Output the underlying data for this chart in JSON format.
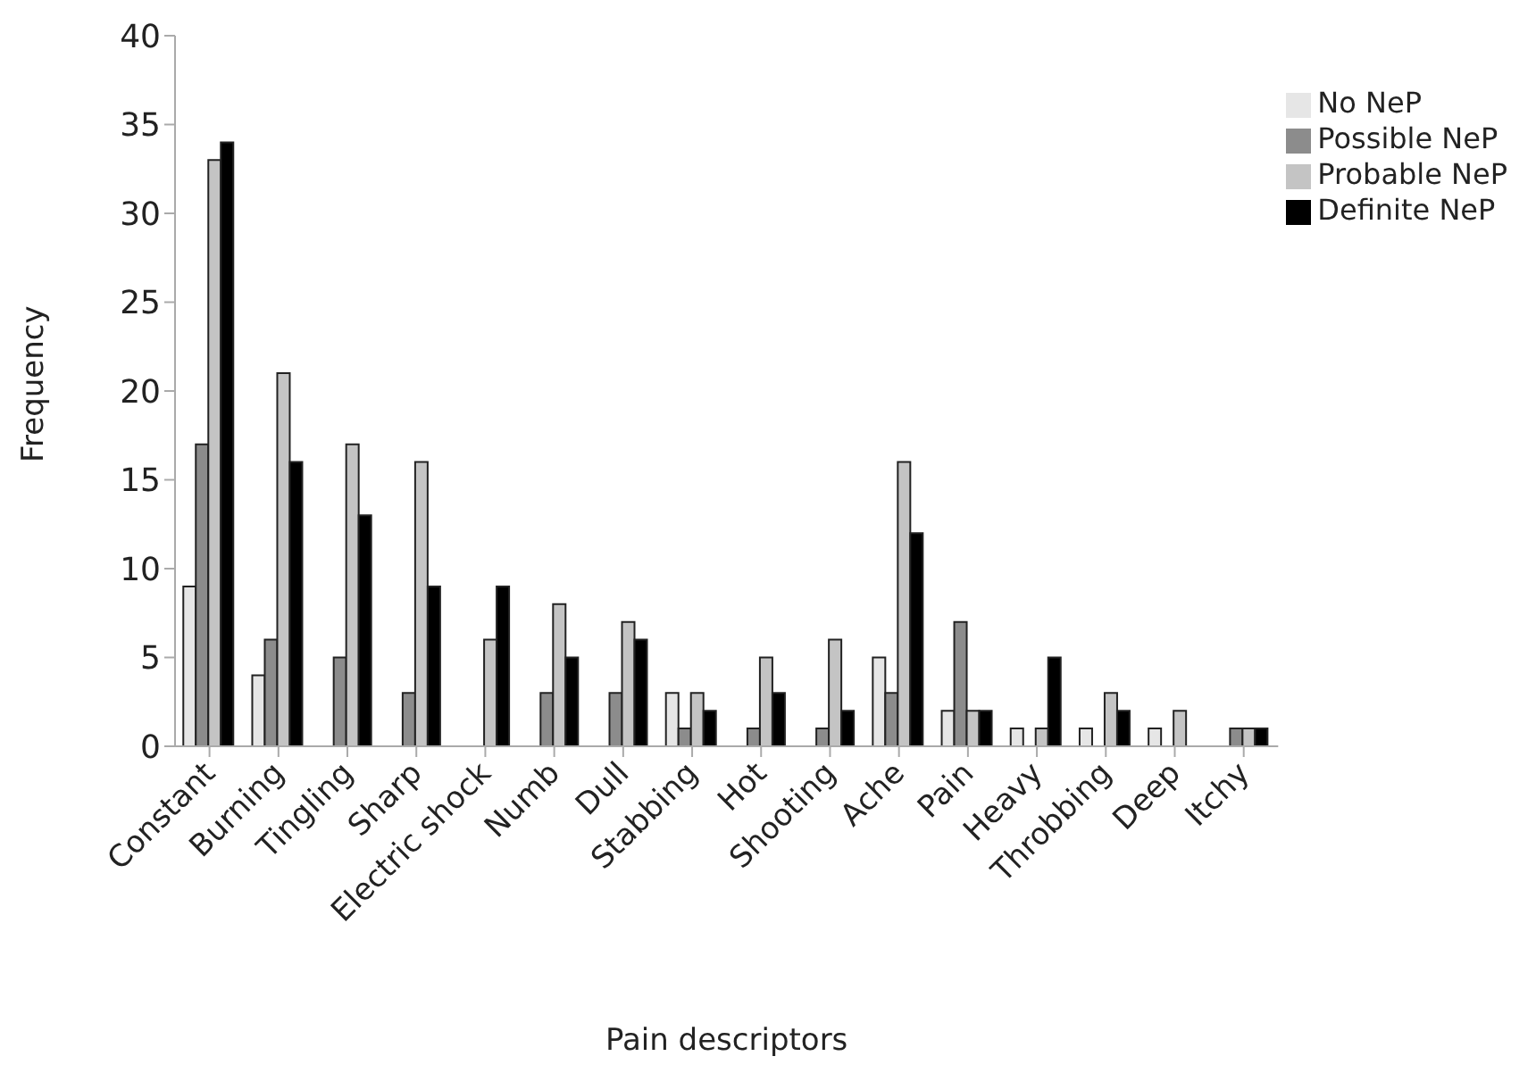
{
  "chart_data": {
    "type": "bar",
    "xlabel": "Pain descriptors",
    "ylabel": "Frequency",
    "categories": [
      "Constant",
      "Burning",
      "Tingling",
      "Sharp",
      "Electric shock",
      "Numb",
      "Dull",
      "Stabbing",
      "Hot",
      "Shooting",
      "Ache",
      "Pain",
      "Heavy",
      "Throbbing",
      "Deep",
      "Itchy"
    ],
    "series": [
      {
        "name": "No NeP",
        "color": "#e6e6e6",
        "values": [
          9,
          4,
          0,
          0,
          0,
          0,
          0,
          3,
          0,
          0,
          5,
          2,
          1,
          1,
          1,
          0
        ]
      },
      {
        "name": "Possible NeP",
        "color": "#8c8c8c",
        "values": [
          17,
          6,
          5,
          3,
          0,
          3,
          3,
          1,
          1,
          1,
          3,
          7,
          0,
          0,
          0,
          1
        ]
      },
      {
        "name": "Probable NeP",
        "color": "#c4c4c4",
        "values": [
          33,
          21,
          17,
          16,
          6,
          8,
          7,
          3,
          5,
          6,
          16,
          2,
          1,
          3,
          2,
          1
        ]
      },
      {
        "name": "Definite NeP",
        "color": "#000000",
        "values": [
          34,
          16,
          13,
          9,
          9,
          5,
          6,
          2,
          3,
          2,
          12,
          2,
          5,
          2,
          0,
          1
        ]
      }
    ],
    "ylim": [
      0,
      40
    ],
    "yticks": [
      0,
      5,
      10,
      15,
      20,
      25,
      30,
      35,
      40
    ],
    "grid": false,
    "legend": "top right"
  }
}
